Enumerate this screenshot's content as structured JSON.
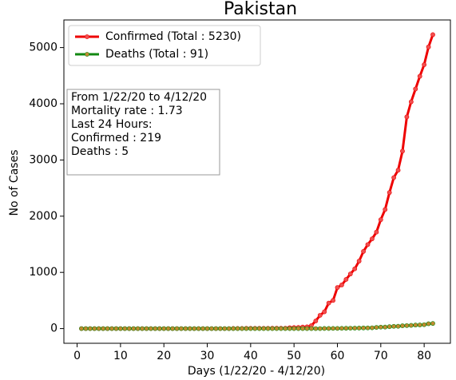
{
  "chart_data": {
    "type": "line",
    "title": "Pakistan",
    "xlabel": "Days (1/22/20 - 4/12/20)",
    "ylabel": "No of Cases",
    "x": [
      1,
      2,
      3,
      4,
      5,
      6,
      7,
      8,
      9,
      10,
      11,
      12,
      13,
      14,
      15,
      16,
      17,
      18,
      19,
      20,
      21,
      22,
      23,
      24,
      25,
      26,
      27,
      28,
      29,
      30,
      31,
      32,
      33,
      34,
      35,
      36,
      37,
      38,
      39,
      40,
      41,
      42,
      43,
      44,
      45,
      46,
      47,
      48,
      49,
      50,
      51,
      52,
      53,
      54,
      55,
      56,
      57,
      58,
      59,
      60,
      61,
      62,
      63,
      64,
      65,
      66,
      67,
      68,
      69,
      70,
      71,
      72,
      73,
      74,
      75,
      76,
      77,
      78,
      79,
      80,
      81,
      82
    ],
    "series": [
      {
        "name": "Confirmed (Total : 5230)",
        "color": "#ee0000",
        "marker_color": "#f05050",
        "values": [
          0,
          0,
          0,
          0,
          0,
          0,
          0,
          0,
          0,
          0,
          0,
          0,
          0,
          0,
          0,
          0,
          0,
          0,
          0,
          0,
          0,
          0,
          0,
          0,
          0,
          0,
          0,
          0,
          0,
          0,
          0,
          0,
          0,
          0,
          0,
          2,
          2,
          2,
          4,
          4,
          4,
          5,
          5,
          5,
          6,
          6,
          6,
          6,
          16,
          19,
          20,
          28,
          31,
          53,
          136,
          236,
          299,
          454,
          501,
          730,
          776,
          875,
          972,
          1063,
          1201,
          1373,
          1495,
          1597,
          1717,
          1938,
          2118,
          2421,
          2686,
          2818,
          3157,
          3766,
          4035,
          4263,
          4489,
          4695,
          5011,
          5230
        ]
      },
      {
        "name": "Deaths (Total : 91)",
        "color": "#118811",
        "marker_color": "#c08a30",
        "values": [
          0,
          0,
          0,
          0,
          0,
          0,
          0,
          0,
          0,
          0,
          0,
          0,
          0,
          0,
          0,
          0,
          0,
          0,
          0,
          0,
          0,
          0,
          0,
          0,
          0,
          0,
          0,
          0,
          0,
          0,
          0,
          0,
          0,
          0,
          0,
          0,
          0,
          0,
          0,
          0,
          0,
          0,
          0,
          0,
          0,
          0,
          0,
          0,
          0,
          0,
          0,
          0,
          0,
          0,
          0,
          0,
          2,
          2,
          3,
          3,
          5,
          6,
          7,
          8,
          9,
          11,
          12,
          14,
          21,
          26,
          27,
          34,
          40,
          41,
          50,
          53,
          57,
          63,
          65,
          69,
          86,
          91
        ]
      }
    ],
    "xlim": [
      -3.05,
      86.05
    ],
    "xticks": [
      0,
      10,
      20,
      30,
      40,
      50,
      60,
      70,
      80
    ],
    "ylim": [
      -261.5,
      5491.5
    ],
    "yticks": [
      0,
      1000,
      2000,
      3000,
      4000,
      5000
    ],
    "legend": "upper left",
    "annotation": [
      "From 1/22/20 to 4/12/20",
      "Mortality rate : 1.73",
      "Last 24 Hours:",
      "Confirmed : 219",
      "Deaths : 5"
    ]
  }
}
